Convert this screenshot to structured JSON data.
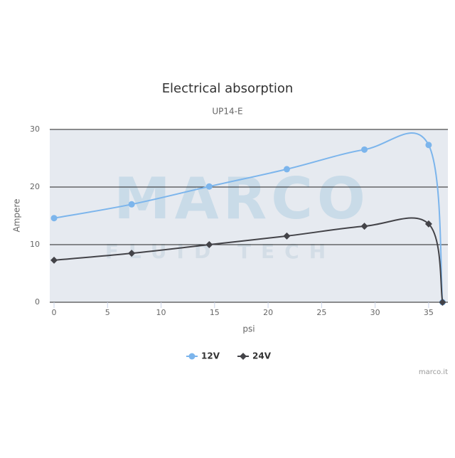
{
  "chart_data": {
    "type": "line",
    "title": "Electrical absorption",
    "subtitle": "UP14-E",
    "x_label": "psi",
    "y_label": "Ampere",
    "x": [
      0,
      7.25,
      14.5,
      21.75,
      29,
      35,
      36.3
    ],
    "series": [
      {
        "name": "12V",
        "color": "#7cb5ec",
        "marker": "circle",
        "values": [
          14.6,
          17.0,
          20.1,
          23.1,
          26.5,
          27.3,
          0
        ]
      },
      {
        "name": "24V",
        "color": "#434348",
        "marker": "diamond",
        "values": [
          7.3,
          8.5,
          10.0,
          11.5,
          13.2,
          13.6,
          0
        ]
      }
    ],
    "xlim": [
      -0.4,
      36.8
    ],
    "ylim": [
      0,
      30
    ],
    "xticks": [
      0,
      5,
      10,
      15,
      20,
      25,
      30,
      35
    ],
    "yticks": [
      0,
      10,
      20,
      30
    ],
    "grid": true,
    "legend": "bottom",
    "watermark": "MARCO",
    "watermark_sub": "FLUID TECH",
    "credit": "marco.it"
  }
}
